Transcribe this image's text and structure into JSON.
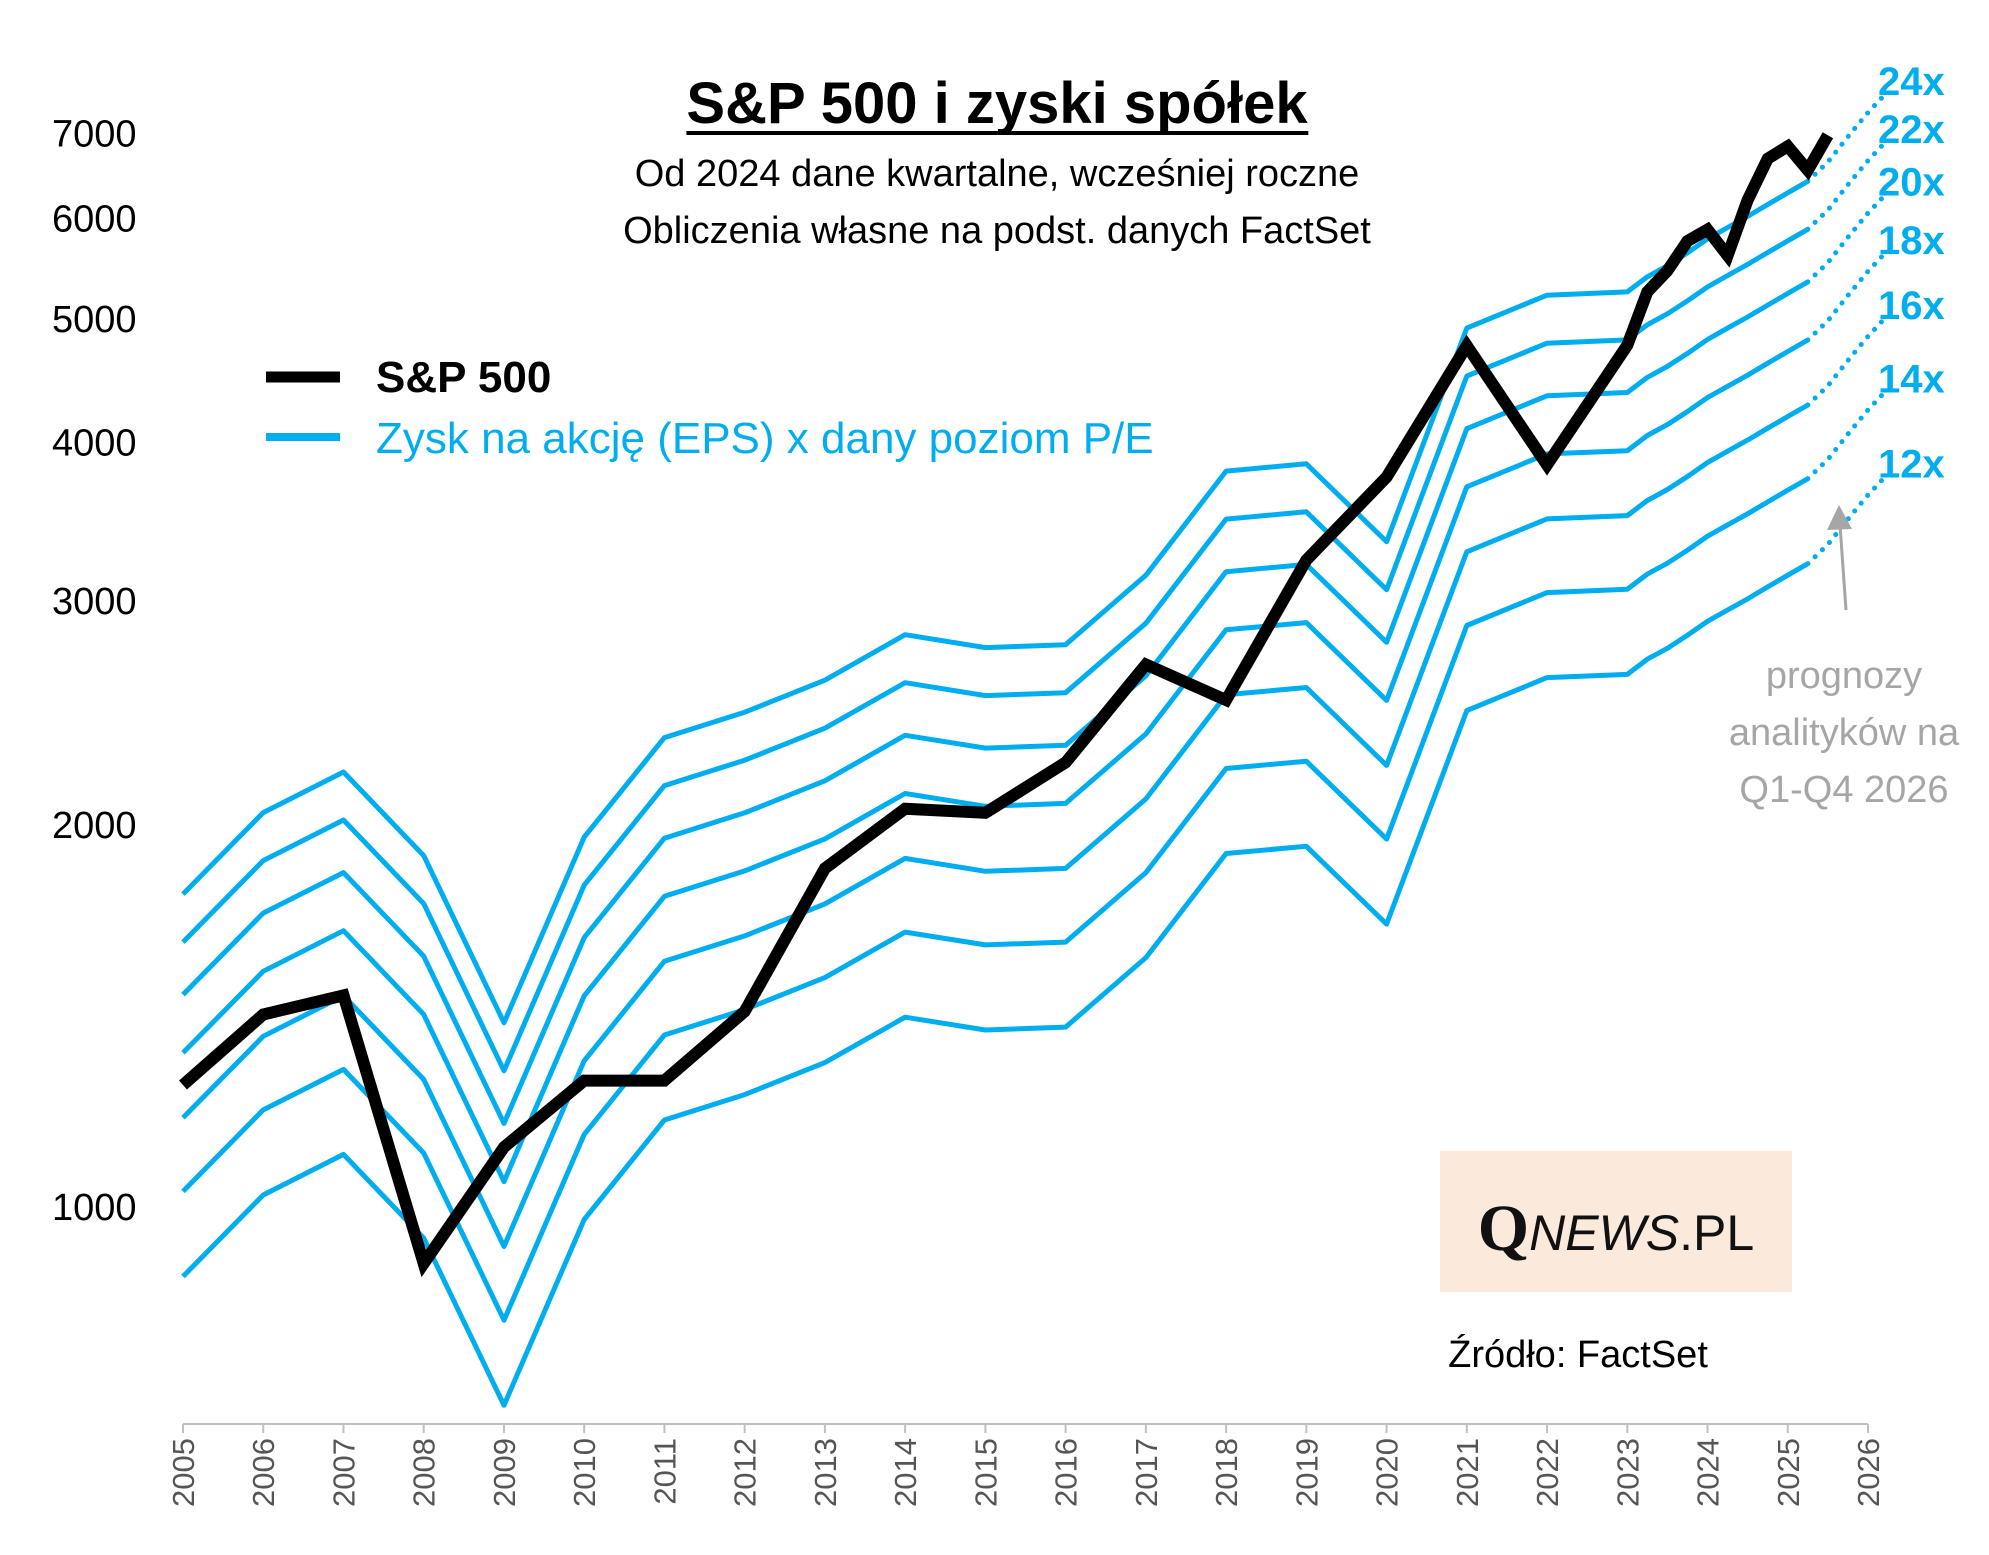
{
  "chart_data": {
    "type": "line",
    "title": "S&P 500 i zyski spółek",
    "subtitle_lines": [
      "Od 2024 dane kwartalne, wcześniej roczne",
      "Obliczenia własne na podst. danych FactSet"
    ],
    "y_scale": "log",
    "ylim": [
      680,
      8600
    ],
    "yticks": [
      1000,
      2000,
      3000,
      4000,
      5000,
      6000,
      7000
    ],
    "xlim": [
      2005,
      2026
    ],
    "xticks": [
      "2005",
      "2006",
      "2007",
      "2008",
      "2009",
      "2010",
      "2011",
      "2012",
      "2013",
      "2014",
      "2015",
      "2016",
      "2017",
      "2018",
      "2019",
      "2020",
      "2021",
      "2022",
      "2023",
      "2024",
      "2025",
      "2026"
    ],
    "legend": {
      "sp500_label": "S&P 500",
      "eps_label": "Zysk na akcję (EPS) x dany poziom P/E",
      "sp500_color": "#000000",
      "eps_color": "#00aeef"
    },
    "sp500": [
      [
        2005,
        1248
      ],
      [
        2006,
        1418
      ],
      [
        2007,
        1468
      ],
      [
        2008,
        903
      ],
      [
        2009,
        1115
      ],
      [
        2010,
        1258
      ],
      [
        2011,
        1258
      ],
      [
        2012,
        1426
      ],
      [
        2013,
        1848
      ],
      [
        2014,
        2059
      ],
      [
        2015,
        2044
      ],
      [
        2016,
        2239
      ],
      [
        2017,
        2674
      ],
      [
        2018,
        2507
      ],
      [
        2019,
        3231
      ],
      [
        2020,
        3756
      ],
      [
        2021,
        4766
      ],
      [
        2022,
        3840
      ],
      [
        2023,
        4770
      ],
      [
        2023.25,
        5254
      ],
      [
        2023.5,
        5460
      ],
      [
        2023.75,
        5762
      ],
      [
        2024,
        5882
      ],
      [
        2024.25,
        5612
      ],
      [
        2024.5,
        6205
      ],
      [
        2024.75,
        6688
      ],
      [
        2025,
        6840
      ],
      [
        2025.25,
        6550
      ],
      [
        2025.5,
        6980
      ]
    ],
    "eps": [
      [
        2005,
        73.5
      ],
      [
        2006,
        85.2
      ],
      [
        2007,
        91.7
      ],
      [
        2008,
        78.8
      ],
      [
        2009,
        58.2
      ],
      [
        2010,
        81.5
      ],
      [
        2011,
        97.6
      ],
      [
        2012,
        102.2
      ],
      [
        2013,
        108.3
      ],
      [
        2014,
        117.6
      ],
      [
        2015,
        114.9
      ],
      [
        2016,
        115.5
      ],
      [
        2017,
        131.0
      ],
      [
        2018,
        158.2
      ],
      [
        2019,
        160.3
      ],
      [
        2020,
        139.2
      ],
      [
        2021,
        205.0
      ],
      [
        2022,
        217.6
      ],
      [
        2023,
        218.9
      ],
      [
        2023.25,
        225.0
      ],
      [
        2023.5,
        229.5
      ],
      [
        2023.75,
        235.0
      ],
      [
        2024,
        241.0
      ],
      [
        2024.25,
        246.0
      ],
      [
        2024.5,
        251.0
      ],
      [
        2024.75,
        256.5
      ],
      [
        2025,
        262.0
      ],
      [
        2025.25,
        267.5
      ]
    ],
    "eps_forecast": [
      [
        2025.25,
        267.5
      ],
      [
        2025.5,
        277.0
      ],
      [
        2025.75,
        290.0
      ],
      [
        2026,
        303.0
      ],
      [
        2026.25,
        315.0
      ]
    ],
    "pe_multiples": [
      {
        "multiple": 24,
        "label": "24x"
      },
      {
        "multiple": 22,
        "label": "22x"
      },
      {
        "multiple": 20,
        "label": "20x"
      },
      {
        "multiple": 18,
        "label": "18x"
      },
      {
        "multiple": 16,
        "label": "16x"
      },
      {
        "multiple": 14,
        "label": "14x"
      },
      {
        "multiple": 12,
        "label": "12x"
      }
    ],
    "annotation": {
      "lines": [
        "prognozy",
        "analityków na",
        "Q1-Q4 2026"
      ],
      "color": "#a6a6a6"
    },
    "source": "Źródło: FactSet",
    "logo": {
      "q": "Q",
      "news": "NEWS",
      "pl": ".PL",
      "background": "#fbe9dc"
    }
  }
}
